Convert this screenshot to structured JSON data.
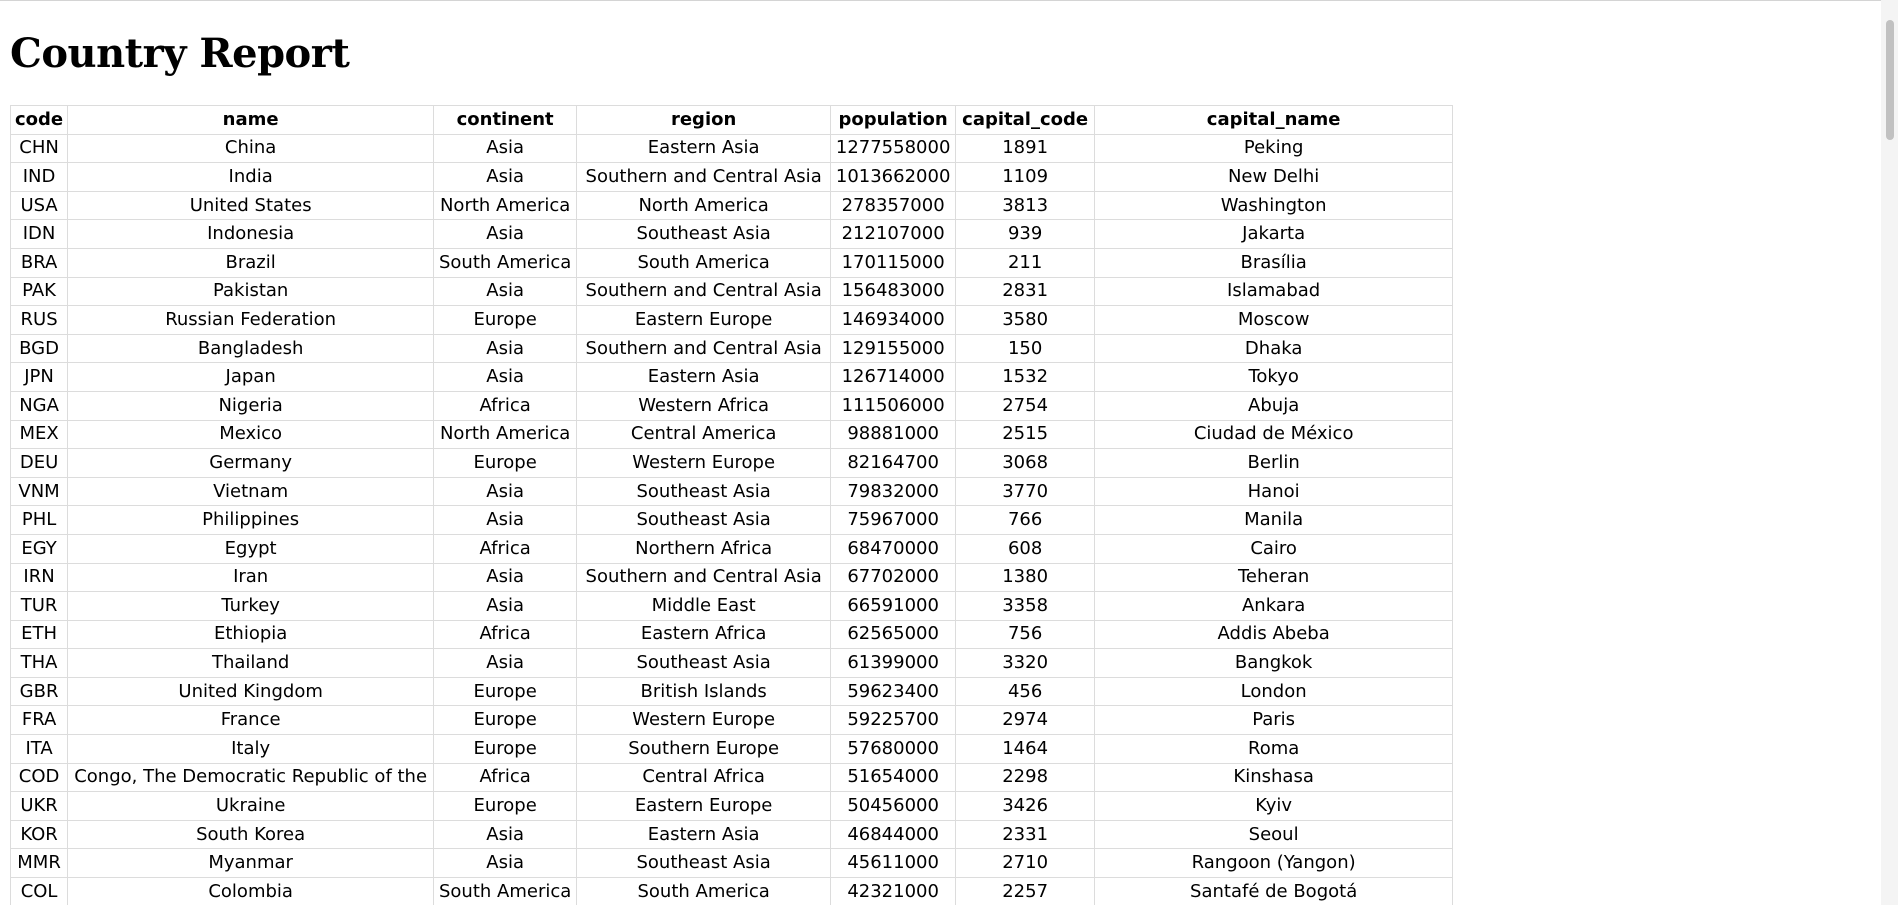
{
  "page": {
    "title": "Country Report"
  },
  "table": {
    "headers": [
      "code",
      "name",
      "continent",
      "region",
      "population",
      "capital_code",
      "capital_name"
    ],
    "rows": [
      [
        "CHN",
        "China",
        "Asia",
        "Eastern Asia",
        "1277558000",
        "1891",
        "Peking"
      ],
      [
        "IND",
        "India",
        "Asia",
        "Southern and Central Asia",
        "1013662000",
        "1109",
        "New Delhi"
      ],
      [
        "USA",
        "United States",
        "North America",
        "North America",
        "278357000",
        "3813",
        "Washington"
      ],
      [
        "IDN",
        "Indonesia",
        "Asia",
        "Southeast Asia",
        "212107000",
        "939",
        "Jakarta"
      ],
      [
        "BRA",
        "Brazil",
        "South America",
        "South America",
        "170115000",
        "211",
        "Brasília"
      ],
      [
        "PAK",
        "Pakistan",
        "Asia",
        "Southern and Central Asia",
        "156483000",
        "2831",
        "Islamabad"
      ],
      [
        "RUS",
        "Russian Federation",
        "Europe",
        "Eastern Europe",
        "146934000",
        "3580",
        "Moscow"
      ],
      [
        "BGD",
        "Bangladesh",
        "Asia",
        "Southern and Central Asia",
        "129155000",
        "150",
        "Dhaka"
      ],
      [
        "JPN",
        "Japan",
        "Asia",
        "Eastern Asia",
        "126714000",
        "1532",
        "Tokyo"
      ],
      [
        "NGA",
        "Nigeria",
        "Africa",
        "Western Africa",
        "111506000",
        "2754",
        "Abuja"
      ],
      [
        "MEX",
        "Mexico",
        "North America",
        "Central America",
        "98881000",
        "2515",
        "Ciudad de México"
      ],
      [
        "DEU",
        "Germany",
        "Europe",
        "Western Europe",
        "82164700",
        "3068",
        "Berlin"
      ],
      [
        "VNM",
        "Vietnam",
        "Asia",
        "Southeast Asia",
        "79832000",
        "3770",
        "Hanoi"
      ],
      [
        "PHL",
        "Philippines",
        "Asia",
        "Southeast Asia",
        "75967000",
        "766",
        "Manila"
      ],
      [
        "EGY",
        "Egypt",
        "Africa",
        "Northern Africa",
        "68470000",
        "608",
        "Cairo"
      ],
      [
        "IRN",
        "Iran",
        "Asia",
        "Southern and Central Asia",
        "67702000",
        "1380",
        "Teheran"
      ],
      [
        "TUR",
        "Turkey",
        "Asia",
        "Middle East",
        "66591000",
        "3358",
        "Ankara"
      ],
      [
        "ETH",
        "Ethiopia",
        "Africa",
        "Eastern Africa",
        "62565000",
        "756",
        "Addis Abeba"
      ],
      [
        "THA",
        "Thailand",
        "Asia",
        "Southeast Asia",
        "61399000",
        "3320",
        "Bangkok"
      ],
      [
        "GBR",
        "United Kingdom",
        "Europe",
        "British Islands",
        "59623400",
        "456",
        "London"
      ],
      [
        "FRA",
        "France",
        "Europe",
        "Western Europe",
        "59225700",
        "2974",
        "Paris"
      ],
      [
        "ITA",
        "Italy",
        "Europe",
        "Southern Europe",
        "57680000",
        "1464",
        "Roma"
      ],
      [
        "COD",
        "Congo, The Democratic Republic of the",
        "Africa",
        "Central Africa",
        "51654000",
        "2298",
        "Kinshasa"
      ],
      [
        "UKR",
        "Ukraine",
        "Europe",
        "Eastern Europe",
        "50456000",
        "3426",
        "Kyiv"
      ],
      [
        "KOR",
        "South Korea",
        "Asia",
        "Eastern Asia",
        "46844000",
        "2331",
        "Seoul"
      ],
      [
        "MMR",
        "Myanmar",
        "Asia",
        "Southeast Asia",
        "45611000",
        "2710",
        "Rangoon (Yangon)"
      ],
      [
        "COL",
        "Colombia",
        "South America",
        "South America",
        "42321000",
        "2257",
        "Santafé de Bogotá"
      ]
    ]
  }
}
